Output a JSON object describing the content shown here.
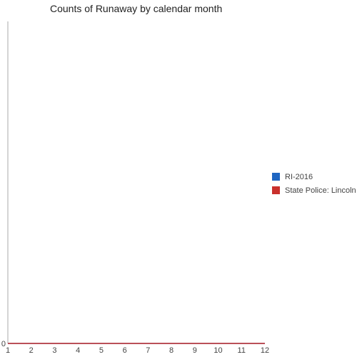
{
  "chart_data": {
    "type": "line",
    "title": "Counts of Runaway by calendar month",
    "xlabel": "",
    "ylabel": "",
    "x": [
      1,
      2,
      3,
      4,
      5,
      6,
      7,
      8,
      9,
      10,
      11,
      12
    ],
    "x_tick_labels": [
      "1",
      "2",
      "3",
      "4",
      "5",
      "6",
      "7",
      "8",
      "9",
      "10",
      "11",
      "12"
    ],
    "y_tick_labels": [
      "0"
    ],
    "xlim": [
      1,
      12
    ],
    "ylim": [
      0,
      1
    ],
    "grid": false,
    "legend_position": "right",
    "series": [
      {
        "name": "RI-2016",
        "color": "#1f66c2",
        "values": [
          0,
          0,
          0,
          0,
          0,
          0,
          0,
          0,
          0,
          0,
          0,
          0
        ]
      },
      {
        "name": "State Police: Lincoln",
        "color": "#c9302c",
        "values": [
          0,
          0,
          0,
          0,
          0,
          0,
          0,
          0,
          0,
          0,
          0,
          0
        ]
      }
    ]
  }
}
